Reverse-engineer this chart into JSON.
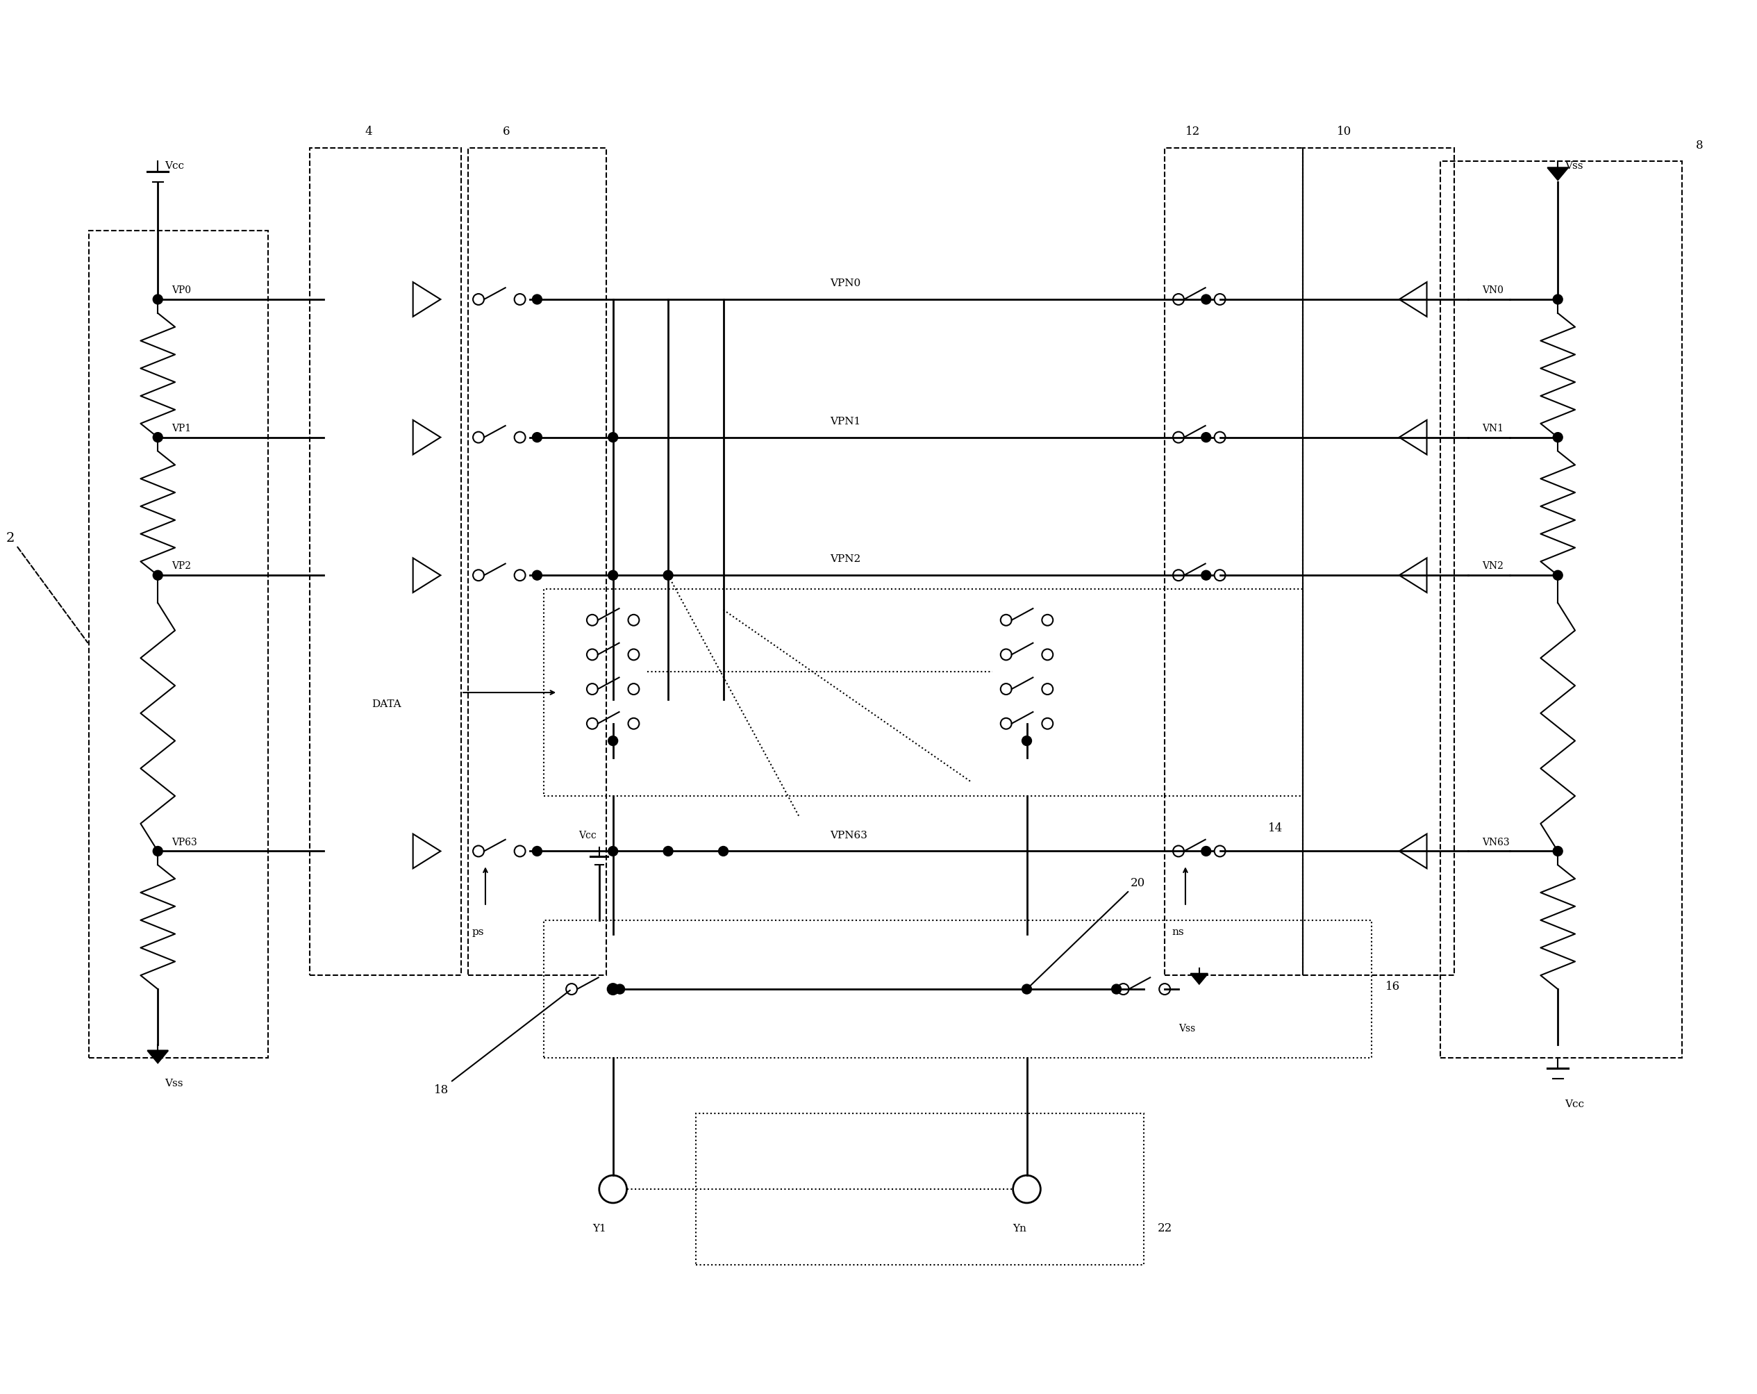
{
  "bg_color": "#ffffff",
  "line_color": "#000000",
  "fig_width": 25.3,
  "fig_height": 20.08,
  "labels": {
    "Vcc_top_left": "Vcc",
    "Vss_bot_left": "Vss",
    "VP0": "VP0",
    "VP1": "VP1",
    "VP2": "VP2",
    "VP63": "VP63",
    "VPN0": "VPN0",
    "VPN1": "VPN1",
    "VPN2": "VPN2",
    "VPN63": "VPN63",
    "VN0": "VN0",
    "VN1": "VN1",
    "VN2": "VN2",
    "VN63": "VN63",
    "Vss_top_right": "Vss",
    "Vcc_bot_right": "Vcc",
    "ps": "ps",
    "ns": "ns",
    "DATA": "DATA",
    "Vcc_bot_box": "Vcc",
    "Vss_bot_box": "Vss",
    "Y1": "Y1",
    "Yn": "Yn",
    "num_2": "2",
    "num_4": "4",
    "num_6": "6",
    "num_8": "8",
    "num_10": "10",
    "num_12": "12",
    "num_14": "14",
    "num_16": "16",
    "num_18": "18",
    "num_20": "20",
    "num_22": "22"
  }
}
